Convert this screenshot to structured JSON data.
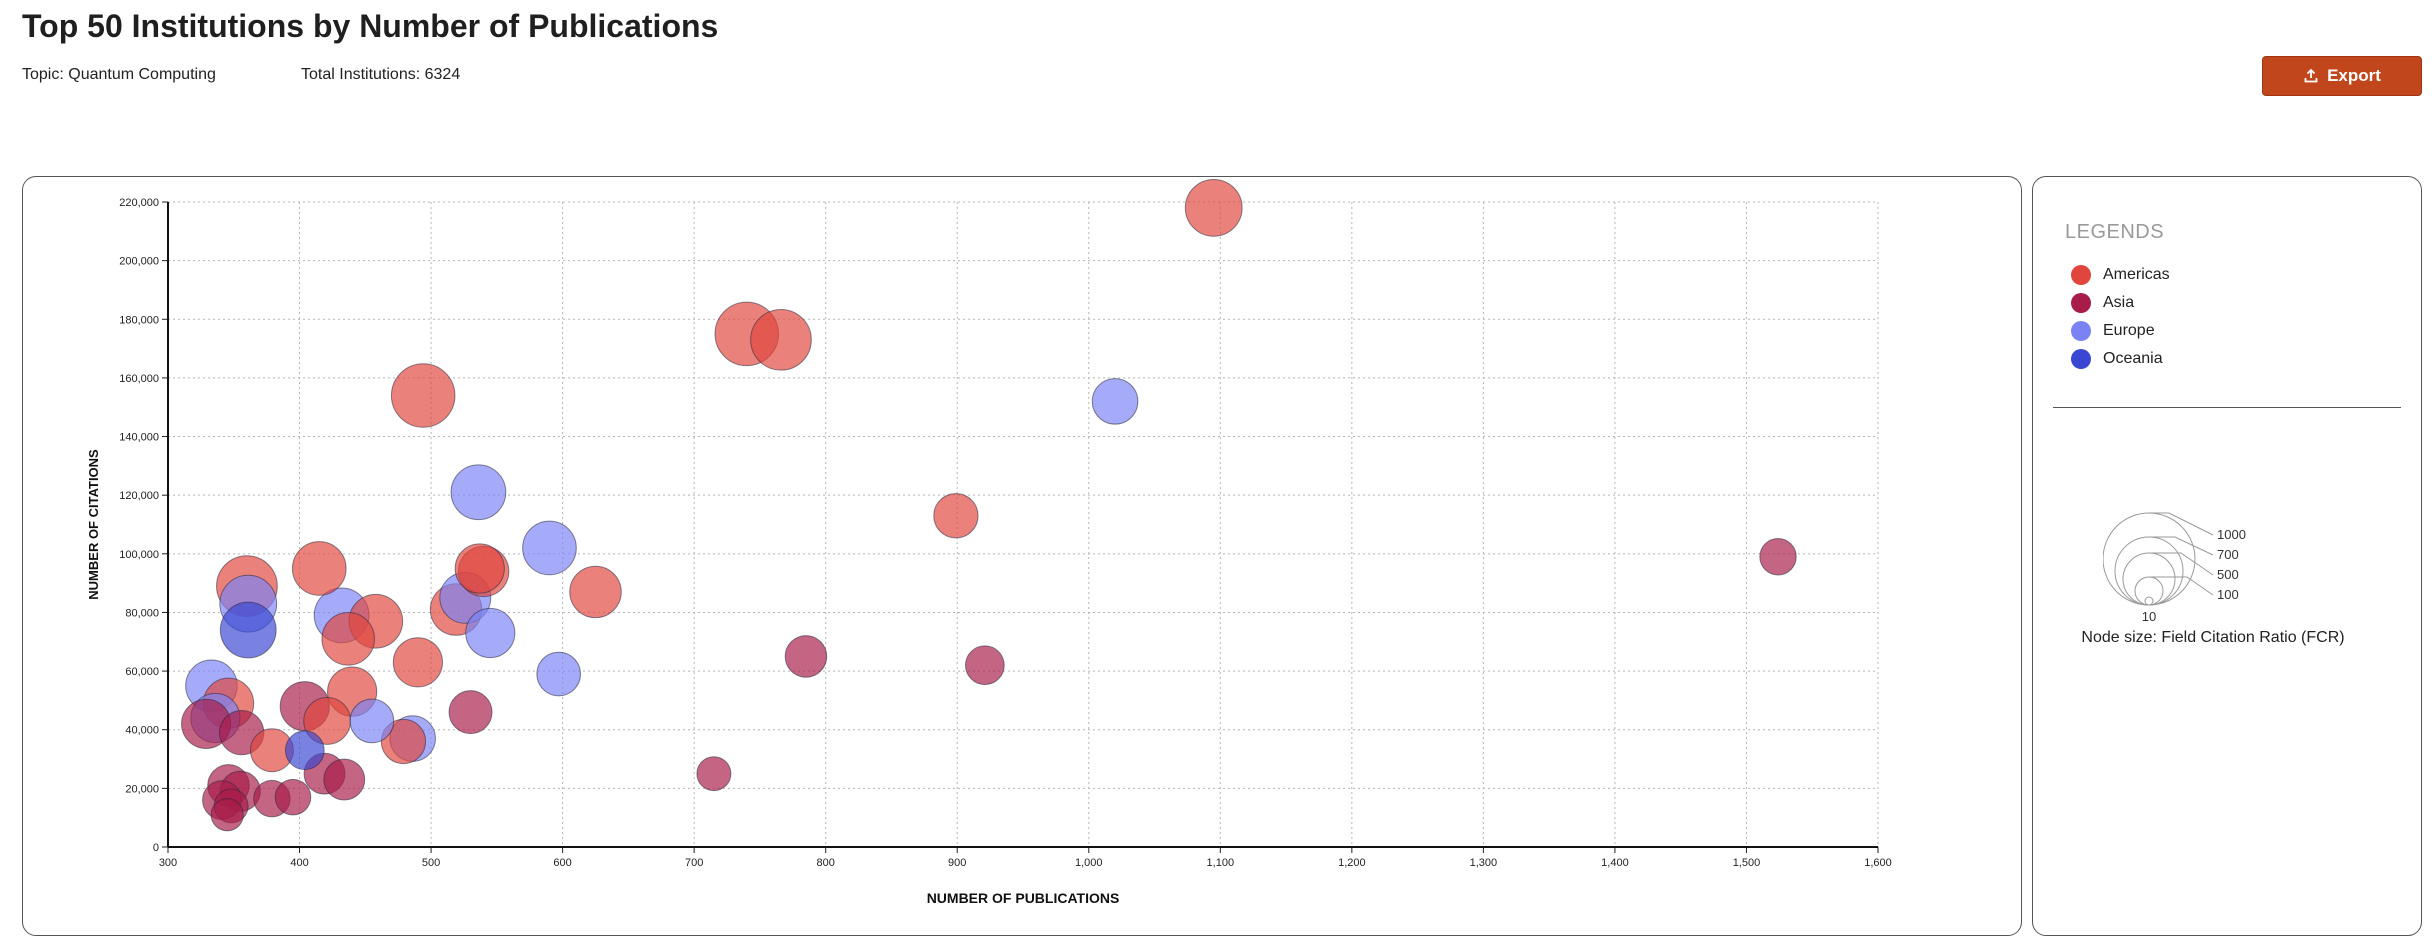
{
  "header": {
    "title": "Top 50 Institutions by Number of Publications",
    "topic": "Topic: Quantum Computing",
    "total": "Total Institutions: 6324",
    "export_label": "Export"
  },
  "legend": {
    "title": "LEGENDS",
    "items": [
      {
        "label": "Americas",
        "color": "#e0463d"
      },
      {
        "label": "Asia",
        "color": "#a81c4a"
      },
      {
        "label": "Europe",
        "color": "#7b83f4"
      },
      {
        "label": "Oceania",
        "color": "#3a47d2"
      }
    ],
    "size_levels": [
      "1000",
      "700",
      "500",
      "100",
      "10"
    ],
    "size_caption": "Node size: Field Citation Ratio (FCR)"
  },
  "chart_data": {
    "type": "scatter",
    "title": "",
    "xlabel": "NUMBER OF PUBLICATIONS",
    "ylabel": "NUMBER OF CITATIONS",
    "xlim": [
      300,
      1600
    ],
    "ylim": [
      0,
      220000
    ],
    "x_ticks": [
      "300",
      "400",
      "500",
      "600",
      "700",
      "800",
      "900",
      "1,000",
      "1,100",
      "1,200",
      "1,300",
      "1,400",
      "1,500",
      "1,600"
    ],
    "y_ticks": [
      "0",
      "20,000",
      "40,000",
      "60,000",
      "80,000",
      "100,000",
      "120,000",
      "140,000",
      "160,000",
      "180,000",
      "200,000",
      "220,000"
    ],
    "grid": true,
    "size_encoding": "Field Citation Ratio (FCR)",
    "points": [
      {
        "x": 1095,
        "y": 218000,
        "size": 560,
        "region": "Americas"
      },
      {
        "x": 740,
        "y": 175000,
        "size": 700,
        "region": "Americas"
      },
      {
        "x": 766,
        "y": 173000,
        "size": 640,
        "region": "Americas"
      },
      {
        "x": 494,
        "y": 154000,
        "size": 700,
        "region": "Americas"
      },
      {
        "x": 1020,
        "y": 152000,
        "size": 360,
        "region": "Europe"
      },
      {
        "x": 536,
        "y": 121000,
        "size": 520,
        "region": "Europe"
      },
      {
        "x": 899,
        "y": 113000,
        "size": 340,
        "region": "Americas"
      },
      {
        "x": 590,
        "y": 102000,
        "size": 500,
        "region": "Europe"
      },
      {
        "x": 1524,
        "y": 99000,
        "size": 230,
        "region": "Asia"
      },
      {
        "x": 415,
        "y": 95000,
        "size": 500,
        "region": "Americas"
      },
      {
        "x": 537,
        "y": 95000,
        "size": 420,
        "region": "Americas"
      },
      {
        "x": 540,
        "y": 94000,
        "size": 440,
        "region": "Americas"
      },
      {
        "x": 360,
        "y": 89000,
        "size": 640,
        "region": "Americas"
      },
      {
        "x": 625,
        "y": 87000,
        "size": 460,
        "region": "Americas"
      },
      {
        "x": 526,
        "y": 85000,
        "size": 450,
        "region": "Europe"
      },
      {
        "x": 361,
        "y": 83000,
        "size": 560,
        "region": "Europe"
      },
      {
        "x": 519,
        "y": 81000,
        "size": 460,
        "region": "Americas"
      },
      {
        "x": 432,
        "y": 79000,
        "size": 520,
        "region": "Europe"
      },
      {
        "x": 458,
        "y": 77000,
        "size": 500,
        "region": "Americas"
      },
      {
        "x": 361,
        "y": 74000,
        "size": 540,
        "region": "Oceania"
      },
      {
        "x": 545,
        "y": 73000,
        "size": 420,
        "region": "Europe"
      },
      {
        "x": 437,
        "y": 71000,
        "size": 480,
        "region": "Americas"
      },
      {
        "x": 785,
        "y": 65000,
        "size": 300,
        "region": "Asia"
      },
      {
        "x": 490,
        "y": 63000,
        "size": 420,
        "region": "Americas"
      },
      {
        "x": 921,
        "y": 62000,
        "size": 260,
        "region": "Asia"
      },
      {
        "x": 597,
        "y": 59000,
        "size": 330,
        "region": "Europe"
      },
      {
        "x": 333,
        "y": 55000,
        "size": 460,
        "region": "Europe"
      },
      {
        "x": 440,
        "y": 53000,
        "size": 420,
        "region": "Americas"
      },
      {
        "x": 346,
        "y": 49000,
        "size": 440,
        "region": "Americas"
      },
      {
        "x": 404,
        "y": 48000,
        "size": 420,
        "region": "Asia"
      },
      {
        "x": 530,
        "y": 46000,
        "size": 320,
        "region": "Asia"
      },
      {
        "x": 336,
        "y": 44000,
        "size": 420,
        "region": "Europe"
      },
      {
        "x": 421,
        "y": 43000,
        "size": 380,
        "region": "Americas"
      },
      {
        "x": 455,
        "y": 43000,
        "size": 330,
        "region": "Europe"
      },
      {
        "x": 329,
        "y": 42000,
        "size": 420,
        "region": "Asia"
      },
      {
        "x": 356,
        "y": 39000,
        "size": 340,
        "region": "Asia"
      },
      {
        "x": 486,
        "y": 37000,
        "size": 360,
        "region": "Europe"
      },
      {
        "x": 479,
        "y": 36000,
        "size": 340,
        "region": "Americas"
      },
      {
        "x": 379,
        "y": 33000,
        "size": 320,
        "region": "Americas"
      },
      {
        "x": 404,
        "y": 33000,
        "size": 260,
        "region": "Oceania"
      },
      {
        "x": 419,
        "y": 25000,
        "size": 290,
        "region": "Asia"
      },
      {
        "x": 715,
        "y": 25000,
        "size": 200,
        "region": "Asia"
      },
      {
        "x": 434,
        "y": 23000,
        "size": 290,
        "region": "Asia"
      },
      {
        "x": 346,
        "y": 21000,
        "size": 300,
        "region": "Asia"
      },
      {
        "x": 355,
        "y": 19000,
        "size": 280,
        "region": "Asia"
      },
      {
        "x": 395,
        "y": 17000,
        "size": 220,
        "region": "Asia"
      },
      {
        "x": 379,
        "y": 16500,
        "size": 230,
        "region": "Asia"
      },
      {
        "x": 341,
        "y": 16000,
        "size": 260,
        "region": "Asia"
      },
      {
        "x": 348,
        "y": 14000,
        "size": 200,
        "region": "Asia"
      },
      {
        "x": 345,
        "y": 11000,
        "size": 180,
        "region": "Asia"
      }
    ]
  }
}
